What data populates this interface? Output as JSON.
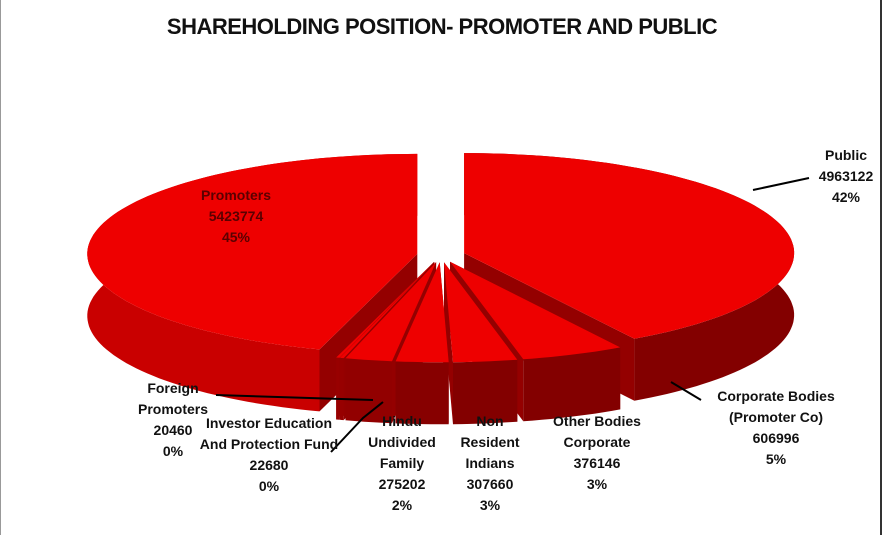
{
  "chart_data": {
    "type": "pie3d",
    "title": "SHAREHOLDING POSITION- PROMOTER AND PUBLIC",
    "categories": [
      "Public",
      "Corporate Bodies (Promoter Co)",
      "Other Bodies Corporate",
      "Non Resident Indians",
      "Hindu Undivided Family",
      "Investor Education And Protection Fund",
      "Foreign Promoters",
      "Promoters"
    ],
    "values": [
      4963122,
      606996,
      376146,
      307660,
      275202,
      22680,
      20460,
      5423774
    ],
    "percent_labels": [
      "42%",
      "5%",
      "3%",
      "3%",
      "2%",
      "0%",
      "0%",
      "45%"
    ],
    "color": "#ee0000"
  }
}
